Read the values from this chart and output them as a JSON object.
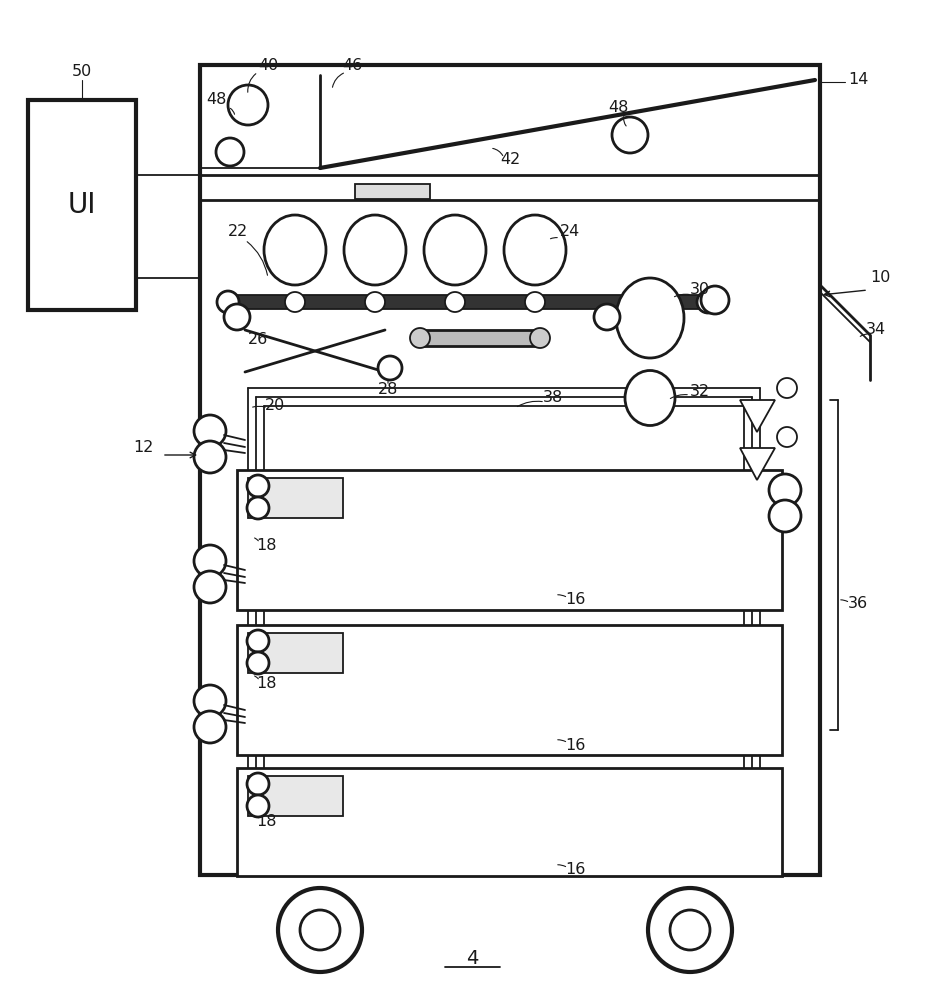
{
  "lc": "#1a1a1a",
  "lw1": 1.3,
  "lw2": 2.0,
  "lw3": 3.0,
  "fs": 11.5
}
